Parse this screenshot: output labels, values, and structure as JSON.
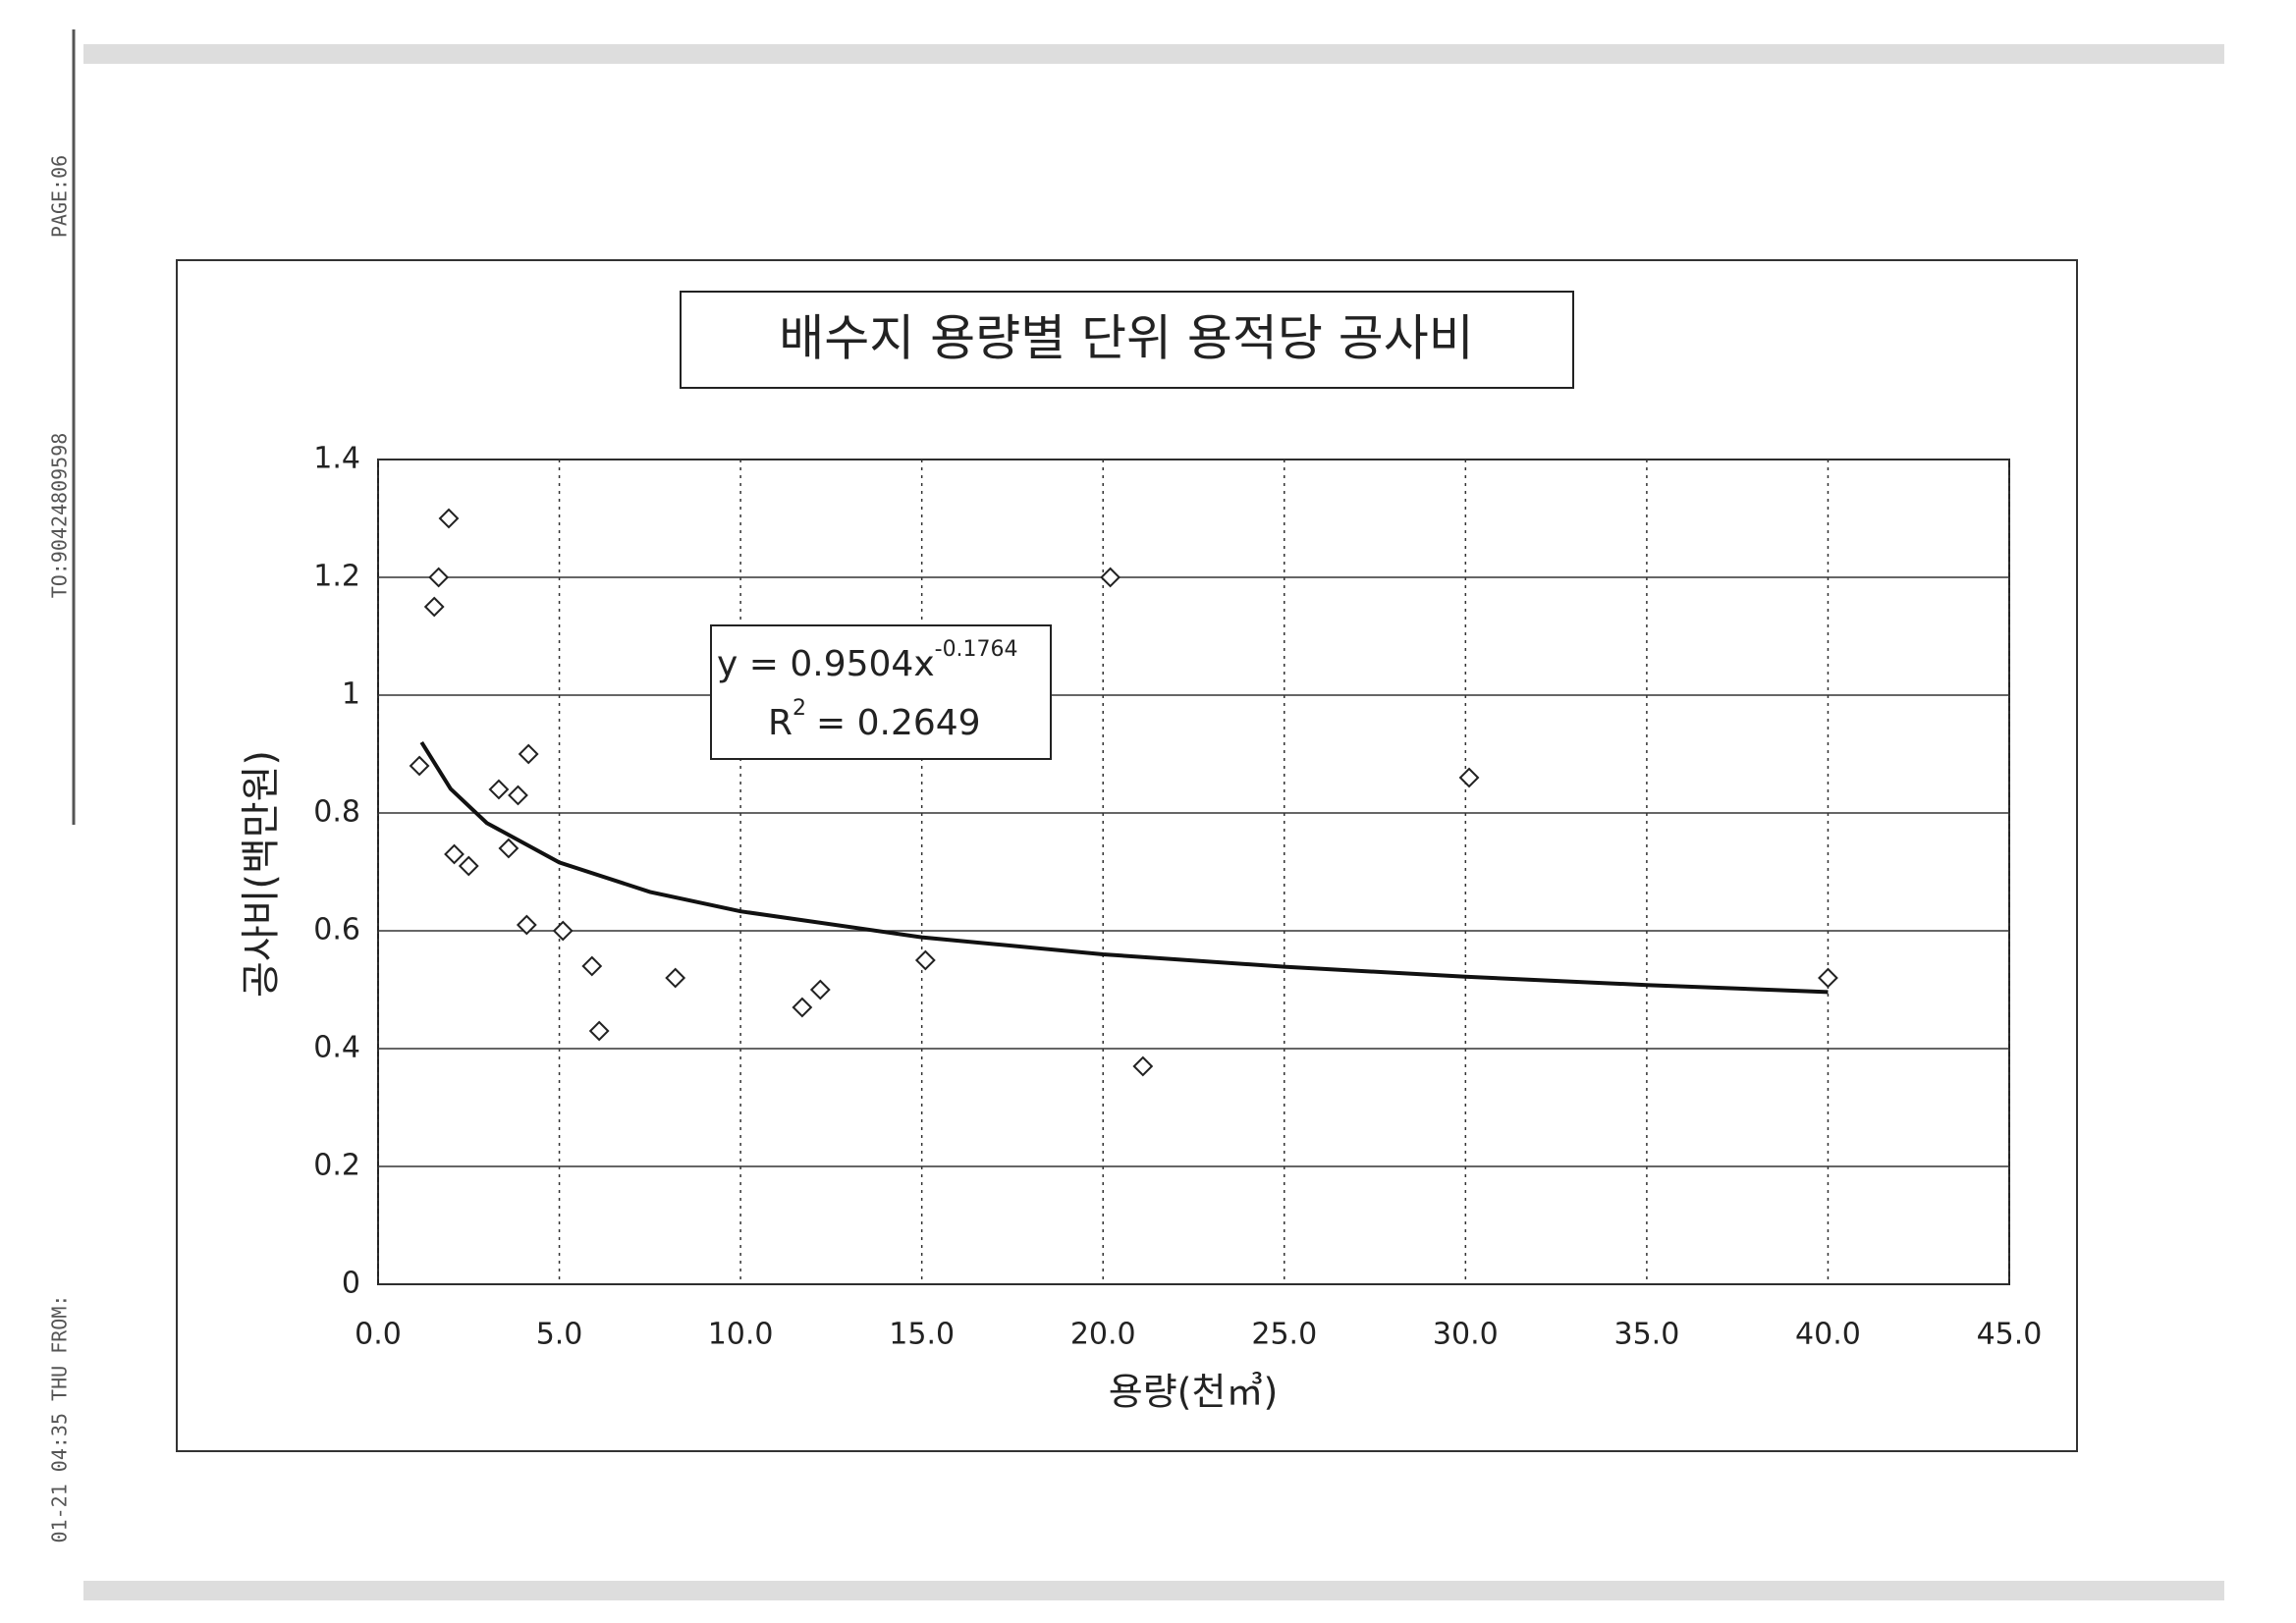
{
  "fax_margin": [
    "PAGE:06",
    "TO:90424809598",
    "01-21 04:35 THU FROM:"
  ],
  "chart_data": {
    "type": "scatter",
    "title": "배수지 용량별 단위 용적당 공사비",
    "x_label": "용량(천㎥)",
    "y_label": "공사비(백만원)",
    "annotations": [
      "y = 0.9504x",
      "-0.1764",
      "R",
      "2",
      "= 0.2649"
    ],
    "xlim": [
      0,
      45
    ],
    "ylim": [
      0,
      1.4
    ],
    "xticks": [
      {
        "value": 0,
        "label": "0.0"
      },
      {
        "value": 5,
        "label": "5.0"
      },
      {
        "value": 10,
        "label": "10.0"
      },
      {
        "value": 15,
        "label": "15.0"
      },
      {
        "value": 20,
        "label": "20.0"
      },
      {
        "value": 25,
        "label": "25.0"
      },
      {
        "value": 30,
        "label": "30.0"
      },
      {
        "value": 35,
        "label": "35.0"
      },
      {
        "value": 40,
        "label": "40.0"
      },
      {
        "value": 45,
        "label": "45.0"
      }
    ],
    "yticks": [
      0,
      0.2,
      0.4,
      0.6,
      0.8,
      1,
      1.2,
      1.4
    ],
    "grid": true,
    "series": [
      {
        "type": "scatter",
        "color": "#222222",
        "x": [
          1.95,
          1.67,
          1.55,
          1.14,
          4.15,
          3.33,
          3.86,
          3.6,
          2.1,
          2.5,
          4.1,
          5.1,
          5.9,
          6.1,
          8.2,
          11.7,
          12.2,
          15.1,
          20.2,
          21.1,
          30.1,
          40.0
        ],
        "values": [
          1.3,
          1.2,
          1.15,
          0.88,
          0.9,
          0.84,
          0.83,
          0.74,
          0.73,
          0.71,
          0.61,
          0.6,
          0.54,
          0.43,
          0.52,
          0.47,
          0.5,
          0.55,
          1.2,
          0.37,
          0.86,
          0.52
        ]
      },
      {
        "type": "line",
        "color": "#111111",
        "x": [
          1.2,
          2,
          3,
          5,
          7.5,
          10,
          15,
          20,
          25,
          30,
          35,
          40
        ],
        "values": [
          0.92,
          0.841,
          0.783,
          0.716,
          0.666,
          0.633,
          0.589,
          0.56,
          0.539,
          0.522,
          0.508,
          0.496
        ]
      }
    ]
  }
}
